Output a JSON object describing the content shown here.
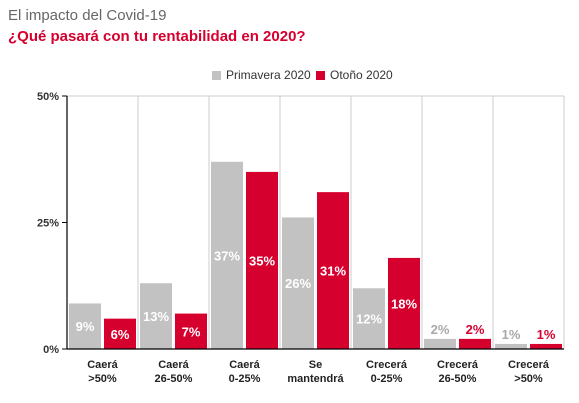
{
  "header": {
    "title": "El impacto del Covid-19",
    "subtitle": "¿Qué pasará con tu rentabilidad en 2020?"
  },
  "colors": {
    "primavera": "#c2c2c2",
    "otono": "#d6002f",
    "label_on_bar": "#ffffff",
    "gridline": "#cccccc",
    "axis": "#000000"
  },
  "chart_data": {
    "type": "bar",
    "title": "¿Qué pasará con tu rentabilidad en 2020?",
    "xlabel": "",
    "ylabel": "",
    "ylim": [
      0,
      50
    ],
    "y_ticks": [
      0,
      25,
      50
    ],
    "y_tick_labels": [
      "0%",
      "25%",
      "50%"
    ],
    "grid": "vertical separators",
    "legend_position": "top-center",
    "categories": [
      [
        "Caerá",
        ">50%"
      ],
      [
        "Caerá",
        "26-50%"
      ],
      [
        "Caerá",
        "0-25%"
      ],
      [
        "Se",
        "mantendrá"
      ],
      [
        "Crecerá",
        "0-25%"
      ],
      [
        "Crecerá",
        "26-50%"
      ],
      [
        "Crecerá",
        ">50%"
      ]
    ],
    "series": [
      {
        "name": "Primavera 2020",
        "values": [
          9,
          13,
          37,
          26,
          12,
          2,
          1
        ],
        "labels": [
          "9%",
          "13%",
          "37%",
          "26%",
          "12%",
          "2%",
          "1%"
        ]
      },
      {
        "name": "Otoño 2020",
        "values": [
          6,
          7,
          35,
          31,
          18,
          2,
          1
        ],
        "labels": [
          "6%",
          "7%",
          "35%",
          "31%",
          "18%",
          "2%",
          "1%"
        ]
      }
    ]
  }
}
